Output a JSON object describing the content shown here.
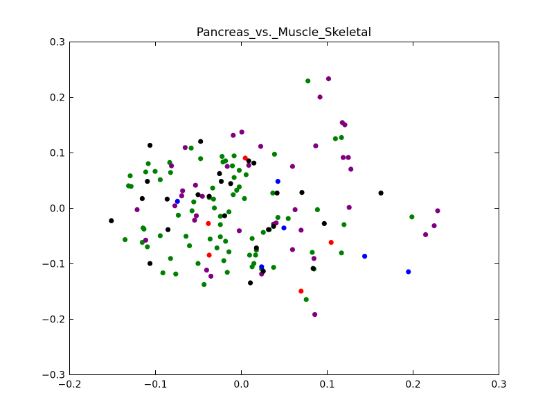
{
  "chart_data": {
    "type": "scatter",
    "title": "Pancreas_vs._Muscle_Skeletal",
    "xlabel": "",
    "ylabel": "",
    "xlim": [
      -0.2,
      0.3
    ],
    "ylim": [
      -0.3,
      0.3
    ],
    "xticks": [
      "−0.2",
      "−0.1",
      "0.0",
      "0.1",
      "0.2",
      "0.3"
    ],
    "xtick_values": [
      -0.2,
      -0.1,
      0.0,
      0.1,
      0.2,
      0.3
    ],
    "yticks": [
      "−0.3",
      "−0.2",
      "−0.1",
      "0.0",
      "0.1",
      "0.2",
      "0.3"
    ],
    "ytick_values": [
      -0.3,
      -0.2,
      -0.1,
      0.0,
      0.1,
      0.2,
      0.3
    ],
    "grid": false,
    "legend": "none",
    "series": [
      {
        "color": "#008000",
        "points": [
          [
            0.078,
            0.229
          ],
          [
            0.117,
            0.127
          ],
          [
            0.11,
            0.125
          ],
          [
            0.039,
            0.097
          ],
          [
            -0.058,
            0.108
          ],
          [
            -0.108,
            0.08
          ],
          [
            -0.1,
            0.066
          ],
          [
            -0.111,
            0.065
          ],
          [
            -0.129,
            0.058
          ],
          [
            -0.083,
            0.082
          ],
          [
            -0.082,
            0.064
          ],
          [
            -0.094,
            0.051
          ],
          [
            -0.131,
            0.04
          ],
          [
            -0.128,
            0.039
          ],
          [
            -0.047,
            0.089
          ],
          [
            -0.022,
            0.093
          ],
          [
            -0.021,
            0.083
          ],
          [
            -0.018,
            0.085
          ],
          [
            -0.01,
            0.076
          ],
          [
            -0.008,
            0.094
          ],
          [
            -0.002,
            0.068
          ],
          [
            0.006,
            0.06
          ],
          [
            -0.008,
            0.055
          ],
          [
            -0.002,
            0.038
          ],
          [
            -0.005,
            0.032
          ],
          [
            -0.009,
            0.024
          ],
          [
            -0.033,
            0.036
          ],
          [
            -0.055,
            0.011
          ],
          [
            -0.037,
            0.019
          ],
          [
            -0.032,
            0.016
          ],
          [
            -0.031,
            0.0
          ],
          [
            -0.057,
            -0.005
          ],
          [
            -0.073,
            -0.013
          ],
          [
            -0.014,
            -0.007
          ],
          [
            -0.024,
            -0.015
          ],
          [
            -0.024,
            -0.03
          ],
          [
            -0.114,
            -0.036
          ],
          [
            -0.113,
            -0.038
          ],
          [
            -0.094,
            -0.05
          ],
          [
            -0.064,
            -0.051
          ],
          [
            -0.024,
            -0.052
          ],
          [
            -0.018,
            -0.06
          ],
          [
            -0.036,
            -0.056
          ],
          [
            -0.109,
            -0.07
          ],
          [
            -0.115,
            -0.062
          ],
          [
            -0.135,
            -0.057
          ],
          [
            -0.06,
            -0.068
          ],
          [
            -0.028,
            -0.072
          ],
          [
            -0.014,
            -0.079
          ],
          [
            0.01,
            -0.085
          ],
          [
            0.018,
            -0.076
          ],
          [
            0.017,
            -0.085
          ],
          [
            0.013,
            -0.055
          ],
          [
            -0.082,
            -0.091
          ],
          [
            -0.05,
            -0.1
          ],
          [
            -0.02,
            -0.095
          ],
          [
            0.015,
            -0.1
          ],
          [
            0.013,
            -0.106
          ],
          [
            0.038,
            -0.107
          ],
          [
            0.026,
            -0.044
          ],
          [
            0.033,
            -0.039
          ],
          [
            0.037,
            0.027
          ],
          [
            0.043,
            -0.017
          ],
          [
            0.055,
            -0.019
          ],
          [
            0.089,
            -0.003
          ],
          [
            0.083,
            -0.08
          ],
          [
            0.085,
            -0.11
          ],
          [
            0.076,
            -0.165
          ],
          [
            0.117,
            -0.081
          ],
          [
            0.12,
            -0.03
          ],
          [
            0.199,
            -0.016
          ],
          [
            -0.091,
            -0.117
          ],
          [
            -0.076,
            -0.119
          ],
          [
            -0.043,
            -0.138
          ],
          [
            -0.016,
            -0.116
          ],
          [
            0.024,
            -0.11
          ],
          [
            0.004,
            0.017
          ]
        ]
      },
      {
        "color": "#800080",
        "points": [
          [
            0.102,
            0.233
          ],
          [
            0.092,
            0.2
          ],
          [
            0.118,
            0.154
          ],
          [
            0.121,
            0.15
          ],
          [
            0.087,
            0.112
          ],
          [
            0.119,
            0.091
          ],
          [
            0.125,
            0.091
          ],
          [
            0.128,
            0.07
          ],
          [
            0.06,
            0.075
          ],
          [
            0.001,
            0.137
          ],
          [
            -0.009,
            0.131
          ],
          [
            0.023,
            0.111
          ],
          [
            -0.065,
            0.109
          ],
          [
            -0.081,
            0.076
          ],
          [
            -0.016,
            0.075
          ],
          [
            0.009,
            0.077
          ],
          [
            -0.068,
            0.031
          ],
          [
            -0.053,
            0.041
          ],
          [
            -0.069,
            0.022
          ],
          [
            -0.077,
            0.004
          ],
          [
            -0.045,
            0.021
          ],
          [
            -0.121,
            -0.003
          ],
          [
            -0.052,
            -0.014
          ],
          [
            -0.054,
            -0.022
          ],
          [
            -0.002,
            -0.041
          ],
          [
            0.063,
            -0.003
          ],
          [
            0.07,
            -0.04
          ],
          [
            0.126,
            0.001
          ],
          [
            0.06,
            -0.075
          ],
          [
            0.085,
            -0.091
          ],
          [
            0.086,
            -0.192
          ],
          [
            0.041,
            -0.027
          ],
          [
            0.038,
            -0.029
          ],
          [
            -0.111,
            -0.058
          ],
          [
            -0.04,
            -0.112
          ],
          [
            -0.035,
            -0.123
          ],
          [
            0.024,
            -0.119
          ],
          [
            0.225,
            -0.032
          ],
          [
            0.215,
            -0.048
          ],
          [
            0.229,
            -0.005
          ]
        ]
      },
      {
        "color": "#000000",
        "points": [
          [
            -0.106,
            0.113
          ],
          [
            -0.047,
            0.12
          ],
          [
            0.009,
            0.085
          ],
          [
            0.015,
            0.081
          ],
          [
            -0.025,
            0.062
          ],
          [
            -0.023,
            0.048
          ],
          [
            -0.012,
            0.044
          ],
          [
            -0.109,
            0.048
          ],
          [
            -0.05,
            0.024
          ],
          [
            -0.037,
            0.021
          ],
          [
            -0.086,
            0.016
          ],
          [
            -0.115,
            0.017
          ],
          [
            -0.019,
            -0.014
          ],
          [
            -0.151,
            -0.023
          ],
          [
            -0.085,
            -0.039
          ],
          [
            0.032,
            -0.039
          ],
          [
            0.038,
            -0.033
          ],
          [
            0.097,
            -0.028
          ],
          [
            -0.106,
            -0.1
          ],
          [
            0.018,
            -0.072
          ],
          [
            0.026,
            -0.114
          ],
          [
            0.011,
            -0.135
          ],
          [
            0.084,
            -0.109
          ],
          [
            0.042,
            0.027
          ],
          [
            0.071,
            0.028
          ],
          [
            0.163,
            0.027
          ]
        ]
      },
      {
        "color": "#ff0000",
        "points": [
          [
            0.005,
            0.09
          ],
          [
            -0.038,
            -0.028
          ],
          [
            -0.037,
            -0.085
          ],
          [
            0.07,
            -0.15
          ],
          [
            0.105,
            -0.062
          ]
        ]
      },
      {
        "color": "#0000ff",
        "points": [
          [
            -0.074,
            0.012
          ],
          [
            0.043,
            0.048
          ],
          [
            0.05,
            -0.036
          ],
          [
            0.024,
            -0.106
          ],
          [
            0.144,
            -0.087
          ],
          [
            0.195,
            -0.115
          ]
        ]
      }
    ]
  }
}
